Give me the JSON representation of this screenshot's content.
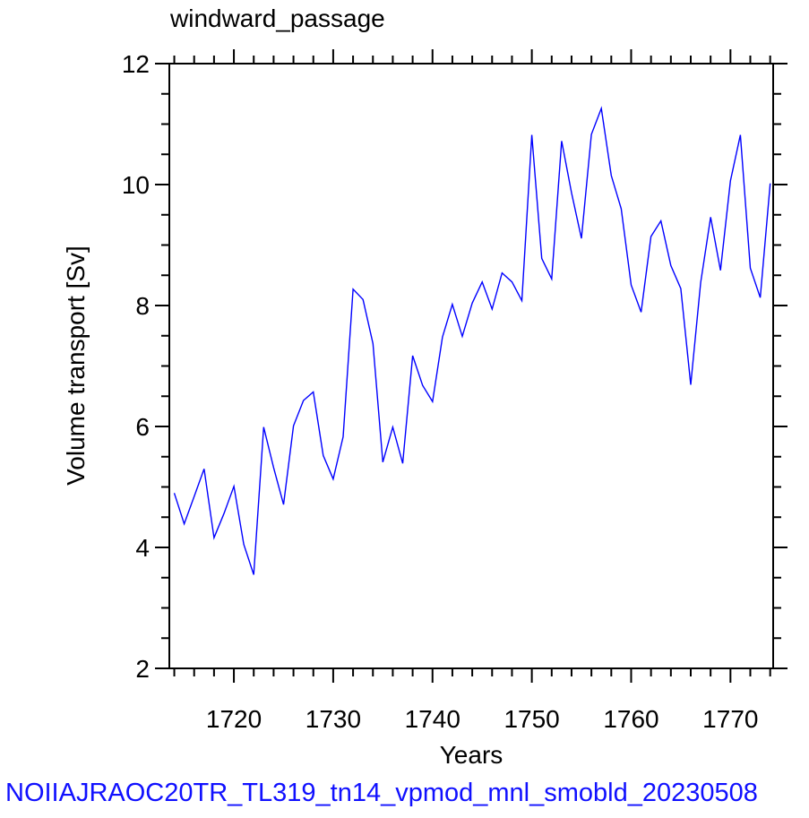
{
  "chart_data": {
    "type": "line",
    "title": "windward_passage",
    "xlabel": "Years",
    "ylabel": "Volume transport [Sv]",
    "xlim": [
      1713.5,
      1774.3
    ],
    "ylim": [
      2,
      12
    ],
    "x_ticks": [
      1720,
      1730,
      1740,
      1750,
      1760,
      1770
    ],
    "y_ticks": [
      2,
      4,
      6,
      8,
      10,
      12
    ],
    "x_tick_labels": [
      "1720",
      "1730",
      "1740",
      "1750",
      "1760",
      "1770"
    ],
    "y_tick_labels": [
      "2",
      "4",
      "6",
      "8",
      "10",
      "12"
    ],
    "grid": false,
    "line_color": "#0000ff",
    "series": [
      {
        "x": [
          1714,
          1715,
          1716,
          1717,
          1718,
          1719,
          1720,
          1721,
          1722,
          1723,
          1724,
          1725,
          1726,
          1727,
          1728,
          1729,
          1730,
          1731,
          1732,
          1733,
          1734,
          1735,
          1736,
          1737,
          1738,
          1739,
          1740,
          1741,
          1742,
          1743,
          1744,
          1745,
          1746,
          1747,
          1748,
          1749,
          1750,
          1751,
          1752,
          1753,
          1754,
          1755,
          1756,
          1757,
          1758,
          1759,
          1760,
          1761,
          1762,
          1763,
          1764,
          1765,
          1766,
          1767,
          1768,
          1769,
          1770,
          1771,
          1772,
          1773,
          1774
        ],
        "values": [
          4.9,
          4.39,
          4.84,
          5.3,
          4.16,
          4.56,
          5.01,
          4.05,
          3.55,
          5.99,
          5.32,
          4.71,
          6.01,
          6.43,
          6.57,
          5.52,
          5.13,
          5.83,
          8.27,
          8.1,
          7.37,
          5.41,
          5.99,
          5.39,
          7.17,
          6.68,
          6.41,
          7.48,
          8.02,
          7.49,
          8.04,
          8.39,
          7.94,
          8.54,
          8.39,
          8.08,
          10.82,
          8.78,
          8.44,
          10.72,
          9.86,
          9.11,
          10.83,
          11.26,
          10.15,
          9.6,
          8.34,
          7.89,
          9.14,
          9.4,
          8.66,
          8.28,
          6.69,
          8.38,
          9.46,
          8.58,
          10.06,
          10.82,
          8.62,
          8.13,
          10.02
        ]
      }
    ]
  },
  "footer": {
    "text": "NOIIAJRAOC20TR_TL319_tn14_vpmod_mnl_smobld_20230508",
    "color": "#1010ff"
  }
}
